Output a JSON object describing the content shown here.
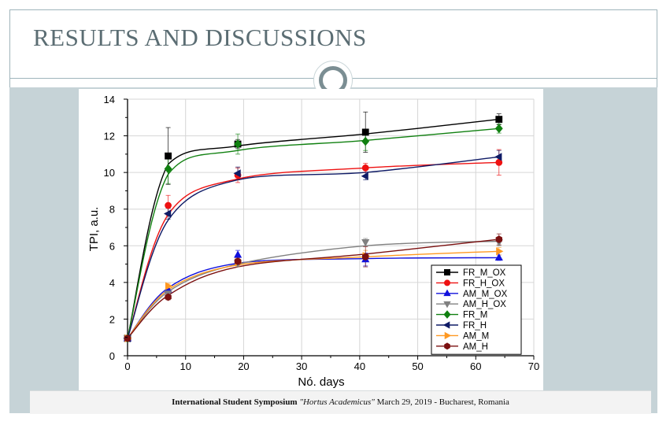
{
  "slide": {
    "title": "RESULTS AND DISCUSSIONS",
    "footer": {
      "symposium": "International Student Symposium",
      "event": "\"Hortus Academicus\"",
      "date_place": "March 29, 2019 - Bucharest, Romania"
    }
  },
  "colors": {
    "frame": "#9fb4bb",
    "band": "#c6d3d7",
    "title": "#5b6d73"
  },
  "chart_data": {
    "type": "scatter",
    "xlabel": "Nó. days",
    "ylabel": "TPI, a.u.",
    "xlim": [
      0,
      70
    ],
    "ylim": [
      0,
      14
    ],
    "xticks": [
      0,
      10,
      20,
      30,
      40,
      50,
      60,
      70
    ],
    "yticks": [
      0,
      2,
      4,
      6,
      8,
      10,
      12,
      14
    ],
    "grid": true,
    "legend_position": "bottom-right",
    "x": [
      0,
      7,
      19,
      41,
      64
    ],
    "series": [
      {
        "name": "FR_M_OX",
        "color": "#000000",
        "marker": "square",
        "values": [
          0.95,
          10.9,
          11.55,
          12.2,
          12.9
        ],
        "errors": [
          0,
          1.55,
          0.25,
          1.1,
          0.3
        ],
        "fit": [
          0.95,
          10.45,
          11.45,
          12.1,
          12.9
        ]
      },
      {
        "name": "FR_H_OX",
        "color": "#ee1111",
        "marker": "circle",
        "values": [
          0.95,
          8.2,
          9.85,
          10.25,
          10.55
        ],
        "errors": [
          0,
          0.55,
          0.4,
          0.25,
          0.7
        ],
        "fit": [
          0.95,
          7.7,
          9.65,
          10.25,
          10.55
        ]
      },
      {
        "name": "AM_M_OX",
        "color": "#1111dd",
        "marker": "triangle-up",
        "values": [
          0.95,
          3.6,
          5.5,
          5.25,
          5.35
        ],
        "errors": [
          0,
          0.25,
          0.25,
          0.35,
          0.15
        ],
        "fit": [
          0.95,
          3.7,
          5.05,
          5.3,
          5.35
        ]
      },
      {
        "name": "AM_H_OX",
        "color": "#808080",
        "marker": "triangle-down",
        "values": [
          0.95,
          3.4,
          5.05,
          6.2,
          6.2
        ],
        "errors": [
          0,
          0.2,
          0.2,
          0.2,
          0.2
        ],
        "fit": [
          0.95,
          3.5,
          5.0,
          6.0,
          6.25
        ]
      },
      {
        "name": "FR_M",
        "color": "#108010",
        "marker": "diamond",
        "values": [
          0.95,
          10.2,
          11.55,
          11.7,
          12.4
        ],
        "errors": [
          0,
          0.8,
          0.55,
          0.5,
          0.25
        ],
        "fit": [
          0.95,
          9.9,
          11.2,
          11.75,
          12.4
        ]
      },
      {
        "name": "FR_H",
        "color": "#0f1b66",
        "marker": "triangle-left",
        "values": [
          0.95,
          7.75,
          9.95,
          9.8,
          10.85
        ],
        "errors": [
          0,
          0.3,
          0.35,
          0.2,
          0.35
        ],
        "fit": [
          0.95,
          7.4,
          9.6,
          10.0,
          10.85
        ]
      },
      {
        "name": "AM_M",
        "color": "#ff9922",
        "marker": "triangle-right",
        "values": [
          0.95,
          3.8,
          5.1,
          5.45,
          5.7
        ],
        "errors": [
          0,
          0.15,
          0.2,
          0.3,
          0.2
        ],
        "fit": [
          0.95,
          3.6,
          4.95,
          5.4,
          5.7
        ]
      },
      {
        "name": "AM_H",
        "color": "#7b1010",
        "marker": "hexagon",
        "values": [
          0.95,
          3.2,
          5.15,
          5.4,
          6.35
        ],
        "errors": [
          0,
          0.15,
          0.2,
          0.55,
          0.3
        ],
        "fit": [
          0.95,
          3.3,
          4.85,
          5.55,
          6.35
        ]
      }
    ]
  }
}
